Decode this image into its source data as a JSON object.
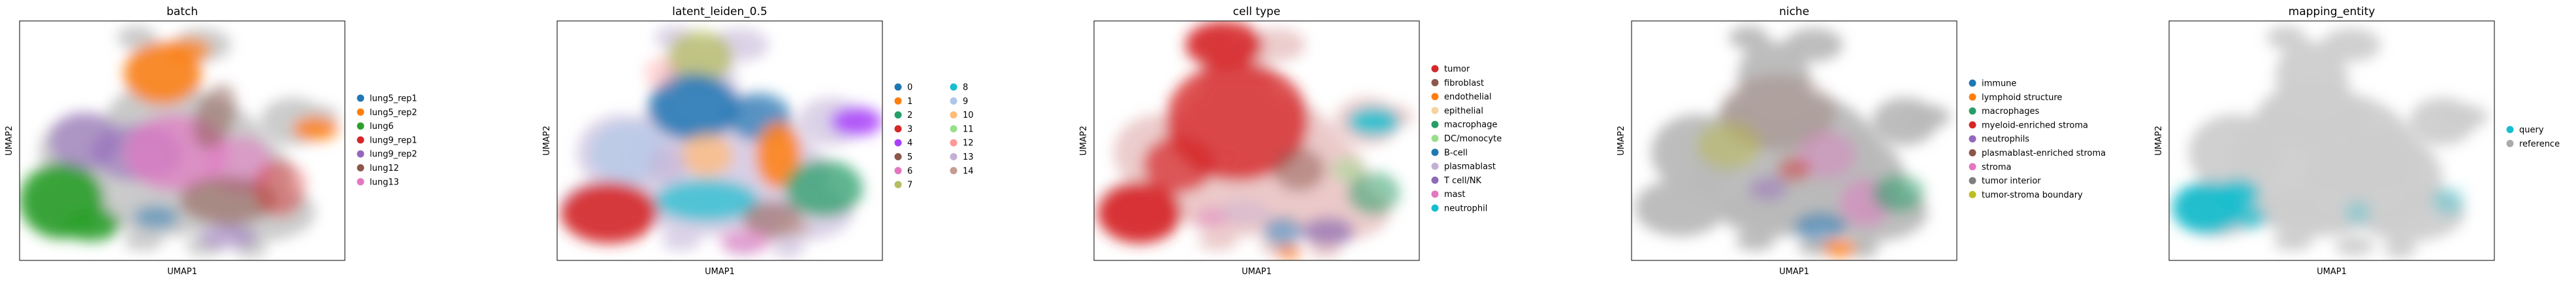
{
  "chart_data": [
    {
      "type": "scatter",
      "title": "batch",
      "xlabel": "UMAP1",
      "ylabel": "UMAP2",
      "grid": false,
      "legend_position": "right",
      "legend": [
        {
          "label": "lung5_rep1",
          "color": "#1f77b4"
        },
        {
          "label": "lung5_rep2",
          "color": "#ff7f0e"
        },
        {
          "label": "lung6",
          "color": "#2ca02c"
        },
        {
          "label": "lung9_rep1",
          "color": "#d62728"
        },
        {
          "label": "lung9_rep2",
          "color": "#9467bd"
        },
        {
          "label": "lung12",
          "color": "#8c564b"
        },
        {
          "label": "lung13",
          "color": "#e377c2"
        }
      ]
    },
    {
      "type": "scatter",
      "title": "latent_leiden_0.5",
      "xlabel": "UMAP1",
      "ylabel": "UMAP2",
      "grid": false,
      "legend_position": "right",
      "legend": [
        {
          "label": "0",
          "color": "#1f77b4"
        },
        {
          "label": "1",
          "color": "#ff7f0e"
        },
        {
          "label": "2",
          "color": "#279e68"
        },
        {
          "label": "3",
          "color": "#d62728"
        },
        {
          "label": "4",
          "color": "#aa40fc"
        },
        {
          "label": "5",
          "color": "#8c564b"
        },
        {
          "label": "6",
          "color": "#e377c2"
        },
        {
          "label": "7",
          "color": "#b5bd61"
        },
        {
          "label": "8",
          "color": "#17becf"
        },
        {
          "label": "9",
          "color": "#aec7e8"
        },
        {
          "label": "10",
          "color": "#ffbb78"
        },
        {
          "label": "11",
          "color": "#98df8a"
        },
        {
          "label": "12",
          "color": "#ff9896"
        },
        {
          "label": "13",
          "color": "#c5b0d5"
        },
        {
          "label": "14",
          "color": "#c49c94"
        }
      ]
    },
    {
      "type": "scatter",
      "title": "cell type",
      "xlabel": "UMAP1",
      "ylabel": "UMAP2",
      "grid": false,
      "legend_position": "right",
      "legend": [
        {
          "label": "tumor",
          "color": "#d62728"
        },
        {
          "label": "fibroblast",
          "color": "#8c564b"
        },
        {
          "label": "endothelial",
          "color": "#ff7f0e"
        },
        {
          "label": "epithelial",
          "color": "#f7d3a0"
        },
        {
          "label": "macrophage",
          "color": "#279e68"
        },
        {
          "label": "DC/monocyte",
          "color": "#98df8a"
        },
        {
          "label": "B-cell",
          "color": "#1f77b4"
        },
        {
          "label": "plasmablast",
          "color": "#c5b0d5"
        },
        {
          "label": "T cell/NK",
          "color": "#8c6bb1"
        },
        {
          "label": "mast",
          "color": "#e377c2"
        },
        {
          "label": "neutrophil",
          "color": "#17becf"
        }
      ]
    },
    {
      "type": "scatter",
      "title": "niche",
      "xlabel": "UMAP1",
      "ylabel": "UMAP2",
      "grid": false,
      "legend_position": "right",
      "legend": [
        {
          "label": "immune",
          "color": "#1f77b4"
        },
        {
          "label": "lymphoid structure",
          "color": "#ff7f0e"
        },
        {
          "label": "macrophages",
          "color": "#279e68"
        },
        {
          "label": "myeloid-enriched stroma",
          "color": "#d62728"
        },
        {
          "label": "neutrophils",
          "color": "#9467bd"
        },
        {
          "label": "plasmablast-enriched stroma",
          "color": "#8c564b"
        },
        {
          "label": "stroma",
          "color": "#e377c2"
        },
        {
          "label": "tumor interior",
          "color": "#7f7f7f"
        },
        {
          "label": "tumor-stroma boundary",
          "color": "#bcbd22"
        }
      ]
    },
    {
      "type": "scatter",
      "title": "mapping_entity",
      "xlabel": "UMAP1",
      "ylabel": "UMAP2",
      "grid": false,
      "legend_position": "right",
      "legend": [
        {
          "label": "query",
          "color": "#17becf"
        },
        {
          "label": "reference",
          "color": "#aaaaaa"
        }
      ]
    }
  ]
}
